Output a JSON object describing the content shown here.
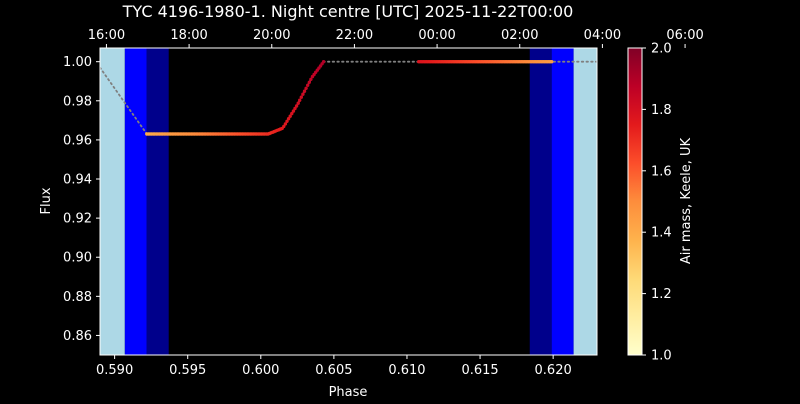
{
  "chart_data": {
    "type": "scatter",
    "title": "TYC 4196-1980-1. Night centre [UTC] 2025-11-22T00:00",
    "xlabel": "Phase",
    "ylabel": "Flux",
    "xlim": [
      0.589,
      0.623
    ],
    "ylim": [
      0.85,
      1.007
    ],
    "x_ticks": [
      "0.590",
      "0.595",
      "0.600",
      "0.605",
      "0.610",
      "0.615",
      "0.620"
    ],
    "y_ticks": [
      "1.00",
      "0.98",
      "0.96",
      "0.94",
      "0.92",
      "0.90",
      "0.88",
      "0.86"
    ],
    "top_axis_ticks": [
      "16:00",
      "18:00",
      "20:00",
      "22:00",
      "00:00",
      "02:00",
      "04:00",
      "06:00"
    ],
    "background": "#000000",
    "twilight_bands": [
      {
        "from": 0.589,
        "to": 0.5907,
        "color": "#add8e6"
      },
      {
        "from": 0.5907,
        "to": 0.5922,
        "color": "#0000ff"
      },
      {
        "from": 0.5922,
        "to": 0.5937,
        "color": "#00008b"
      },
      {
        "from": 0.6184,
        "to": 0.6199,
        "color": "#00008b"
      },
      {
        "from": 0.6199,
        "to": 0.6214,
        "color": "#0000ff"
      },
      {
        "from": 0.6214,
        "to": 0.623,
        "color": "#add8e6"
      }
    ],
    "model_curve": [
      {
        "x": 0.589,
        "y": 0.997
      },
      {
        "x": 0.5922,
        "y": 0.963
      },
      {
        "x": 0.6005,
        "y": 0.963
      },
      {
        "x": 0.6015,
        "y": 0.966
      },
      {
        "x": 0.6025,
        "y": 0.978
      },
      {
        "x": 0.6035,
        "y": 0.992
      },
      {
        "x": 0.6043,
        "y": 1.0
      },
      {
        "x": 0.623,
        "y": 1.0
      }
    ],
    "series": [
      {
        "airmass": [
          {
            "x": 0.5922,
            "y": 0.963,
            "a": 1.4
          },
          {
            "x": 0.596,
            "y": 0.963,
            "a": 1.52
          },
          {
            "x": 0.6,
            "y": 0.963,
            "a": 1.68
          },
          {
            "x": 0.602,
            "y": 0.972,
            "a": 1.78
          },
          {
            "x": 0.6043,
            "y": 1.0,
            "a": 1.9
          }
        ]
      },
      {
        "airmass": [
          {
            "x": 0.6108,
            "y": 1.0,
            "a": 1.78
          },
          {
            "x": 0.615,
            "y": 1.0,
            "a": 1.62
          },
          {
            "x": 0.6199,
            "y": 1.0,
            "a": 1.45
          }
        ]
      }
    ],
    "colorbar": {
      "label": "Air mass, Keele, UK",
      "min": 1.0,
      "max": 2.0,
      "ticks": [
        "2.0",
        "1.8",
        "1.6",
        "1.4",
        "1.2",
        "1.0"
      ],
      "colormap": "YlOrRd",
      "stops": [
        "#ffffcc",
        "#ffeda0",
        "#fed976",
        "#feb24c",
        "#fd8d3c",
        "#fc4e2a",
        "#e31a1c",
        "#bd0026",
        "#800026"
      ]
    }
  }
}
